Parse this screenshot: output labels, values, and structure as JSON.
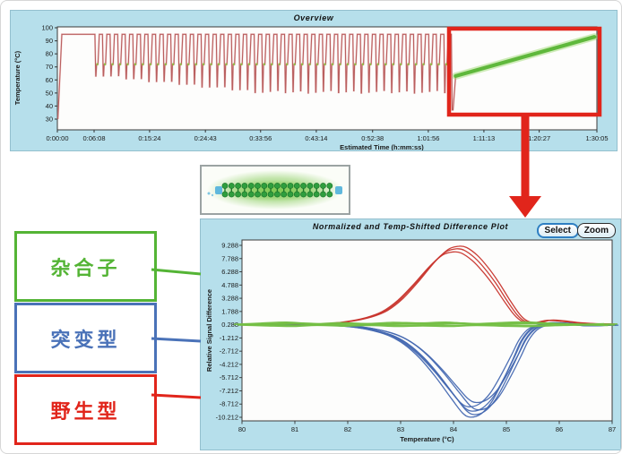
{
  "legend_boxes": [
    {
      "label": "杂合子",
      "color": "#54b435"
    },
    {
      "label": "突变型",
      "color": "#4a72b8"
    },
    {
      "label": "野生型",
      "color": "#e1251b"
    }
  ],
  "annotations": {
    "highlight_box_color": "#e1251b",
    "arrow_color": "#e1251b",
    "connector_colors": [
      "#54b435",
      "#4a72b8",
      "#e1251b"
    ]
  },
  "specimen_image": {
    "glow_color": "#7ec850",
    "bead_color": "#2f9e3e",
    "end_cap_color": "#5fb8dd"
  },
  "chart_data": [
    {
      "id": "overview",
      "type": "line",
      "title": "Overview",
      "xlabel": "Estimated Time (h:mm:ss)",
      "ylabel": "Temperature (°C)",
      "y_ticks": [
        "100",
        "90",
        "80",
        "70",
        "60",
        "50",
        "40",
        "30"
      ],
      "y_tick_values": [
        100,
        90,
        80,
        70,
        60,
        50,
        40,
        30
      ],
      "x_ticks": [
        "0:00:00",
        "0:06:08",
        "0:15:24",
        "0:24:43",
        "0:33:56",
        "0:43:14",
        "0:52:38",
        "1:01:56",
        "1:11:13",
        "1:20:27",
        "1:30:05"
      ],
      "x_tick_seconds": [
        0,
        368,
        924,
        1483,
        2036,
        2594,
        3158,
        3716,
        4273,
        4827,
        5405
      ],
      "x_total_s": 5405,
      "ylim": [
        22,
        101
      ],
      "trace_color": "#b95f5f",
      "trace_highlight_color": "#e7aaaa",
      "acquisition_color": "#8cc63e",
      "melt_line_color": "#5fb83c",
      "profile": {
        "initial": {
          "ramp_start_s": 5,
          "ramp_start_temp": 30,
          "hold_temp": 95,
          "hold_end_s": 370
        },
        "cycles": {
          "count": 47,
          "start_s": 370,
          "period_s": 76,
          "denature_temp": 95,
          "anneal_low_start": 64,
          "anneal_low_end": 51,
          "extension_temp": 72
        },
        "post_cycle_drop_temp": 37,
        "melt": {
          "start_s": 3990,
          "end_s": 5380,
          "temp_start": 63,
          "temp_end": 93
        }
      }
    },
    {
      "id": "difference_plot",
      "type": "line",
      "title": "Normalized and Temp-Shifted Difference Plot",
      "buttons": [
        "Select",
        "Zoom"
      ],
      "xlabel": "Temperature (°C)",
      "ylabel": "Relative Signal Difference",
      "x_ticks": [
        "80",
        "81",
        "82",
        "83",
        "84",
        "85",
        "86",
        "87"
      ],
      "x_range": [
        80,
        87
      ],
      "y_ticks": [
        "9.288",
        "7.788",
        "6.288",
        "4.788",
        "3.288",
        "1.788",
        "0.288",
        "-1.212",
        "-2.712",
        "-4.212",
        "-5.712",
        "-7.212",
        "-8.712",
        "-10.212"
      ],
      "ylim": [
        -10.212,
        9.288
      ],
      "baseline": 0.288,
      "series": [
        {
          "name": "wild-type-red-cluster",
          "color": "#c8342c",
          "width": 1.3,
          "points": [
            [
              80,
              0.02
            ],
            [
              80.4,
              0.06
            ],
            [
              80.8,
              0.12
            ],
            [
              81.2,
              0.05
            ],
            [
              81.6,
              0.12
            ],
            [
              82,
              0.35
            ],
            [
              82.4,
              0.85
            ],
            [
              82.7,
              1.55
            ],
            [
              83,
              2.9
            ],
            [
              83.3,
              4.8
            ],
            [
              83.6,
              6.9
            ],
            [
              83.85,
              8.25
            ],
            [
              84.05,
              8.6
            ],
            [
              84.2,
              8.45
            ],
            [
              84.4,
              7.6
            ],
            [
              84.6,
              6.3
            ],
            [
              84.8,
              4.7
            ],
            [
              85,
              2.85
            ],
            [
              85.2,
              1.15
            ],
            [
              85.35,
              0.4
            ],
            [
              85.55,
              0.2
            ],
            [
              85.8,
              0.5
            ],
            [
              86.05,
              0.42
            ],
            [
              86.35,
              0.22
            ],
            [
              86.7,
              0.1
            ],
            [
              87,
              0.08
            ]
          ],
          "replicates": [
            {
              "scale": 1,
              "dx": 0
            },
            {
              "scale": 0.96,
              "dx": -0.05
            },
            {
              "scale": 1.035,
              "dx": 0.05
            }
          ]
        },
        {
          "name": "mutant-blue-cluster",
          "color": "#4468b1",
          "width": 1.3,
          "points": [
            [
              80,
              -0.02
            ],
            [
              80.5,
              0.05
            ],
            [
              81,
              -0.08
            ],
            [
              81.5,
              -0.05
            ],
            [
              82,
              -0.18
            ],
            [
              82.4,
              -0.5
            ],
            [
              82.8,
              -1.15
            ],
            [
              83.1,
              -2.1
            ],
            [
              83.4,
              -3.6
            ],
            [
              83.7,
              -5.6
            ],
            [
              84,
              -7.9
            ],
            [
              84.2,
              -9.35
            ],
            [
              84.35,
              -9.8
            ],
            [
              84.55,
              -9.45
            ],
            [
              84.75,
              -8.2
            ],
            [
              84.95,
              -6.1
            ],
            [
              85.15,
              -3.7
            ],
            [
              85.3,
              -1.8
            ],
            [
              85.45,
              -0.65
            ],
            [
              85.6,
              -0.15
            ],
            [
              85.85,
              0.2
            ],
            [
              86.1,
              0.15
            ],
            [
              86.5,
              -0.1
            ],
            [
              87,
              -0.05
            ]
          ],
          "replicates": [
            {
              "scale": 1,
              "dx": 0
            },
            {
              "scale": 0.95,
              "dx": -0.06
            },
            {
              "scale": 1.04,
              "dx": 0.04
            },
            {
              "scale": 0.9,
              "dx": 0.08
            },
            {
              "scale": 1.07,
              "dx": -0.03
            },
            {
              "scale": 0.985,
              "dx": 0.12
            }
          ]
        },
        {
          "name": "heterozygote-green-cluster",
          "color": "#74bf44",
          "width": 1.6,
          "points": [
            [
              80,
              0.02
            ],
            [
              80.5,
              0.09
            ],
            [
              81,
              0.15
            ],
            [
              81.5,
              0.05
            ],
            [
              82,
              0.12
            ],
            [
              82.5,
              0.06
            ],
            [
              83,
              0.14
            ],
            [
              83.5,
              0.1
            ],
            [
              84,
              0.15
            ],
            [
              84.5,
              0.06
            ],
            [
              85,
              0.12
            ],
            [
              85.5,
              0.16
            ],
            [
              86,
              0.08
            ],
            [
              86.5,
              0.03
            ],
            [
              87,
              0.06
            ]
          ],
          "replicates": [
            {
              "scale": 0.7,
              "dx": 0
            },
            {
              "scale": 1.3,
              "dx": 0.1
            },
            {
              "scale": 1.9,
              "dx": -0.15
            },
            {
              "scale": -0.6,
              "dx": 0.05
            },
            {
              "scale": -1.3,
              "dx": -0.08
            }
          ]
        }
      ]
    }
  ]
}
